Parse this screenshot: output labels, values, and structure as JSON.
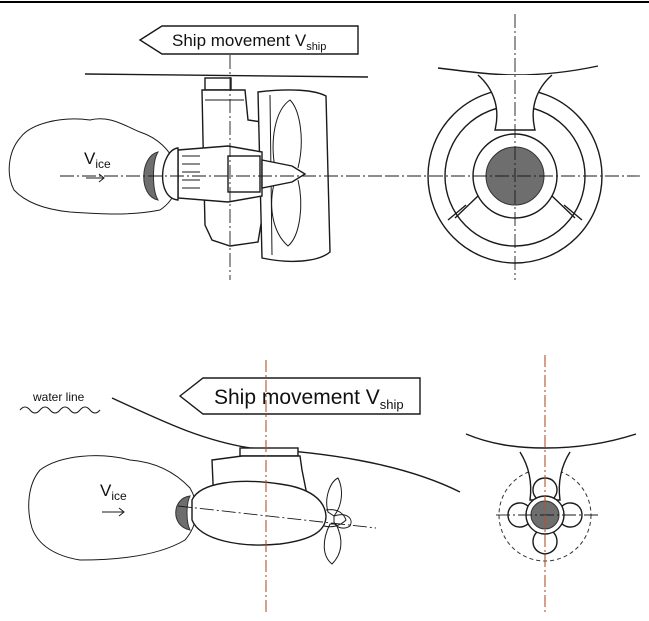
{
  "top_figure": {
    "arrow_label": "Ship movement V",
    "arrow_label_sub": "ship",
    "ice_label": "V",
    "ice_label_sub": "ice"
  },
  "bottom_figure": {
    "arrow_label": "Ship movement V",
    "arrow_label_sub": "ship",
    "ice_label": "V",
    "ice_label_sub": "ice",
    "water_line_label": "water line"
  },
  "colors": {
    "line": "#1a1a1a",
    "hub": "#6e6e6e",
    "centerline_red": "#b3532a"
  }
}
